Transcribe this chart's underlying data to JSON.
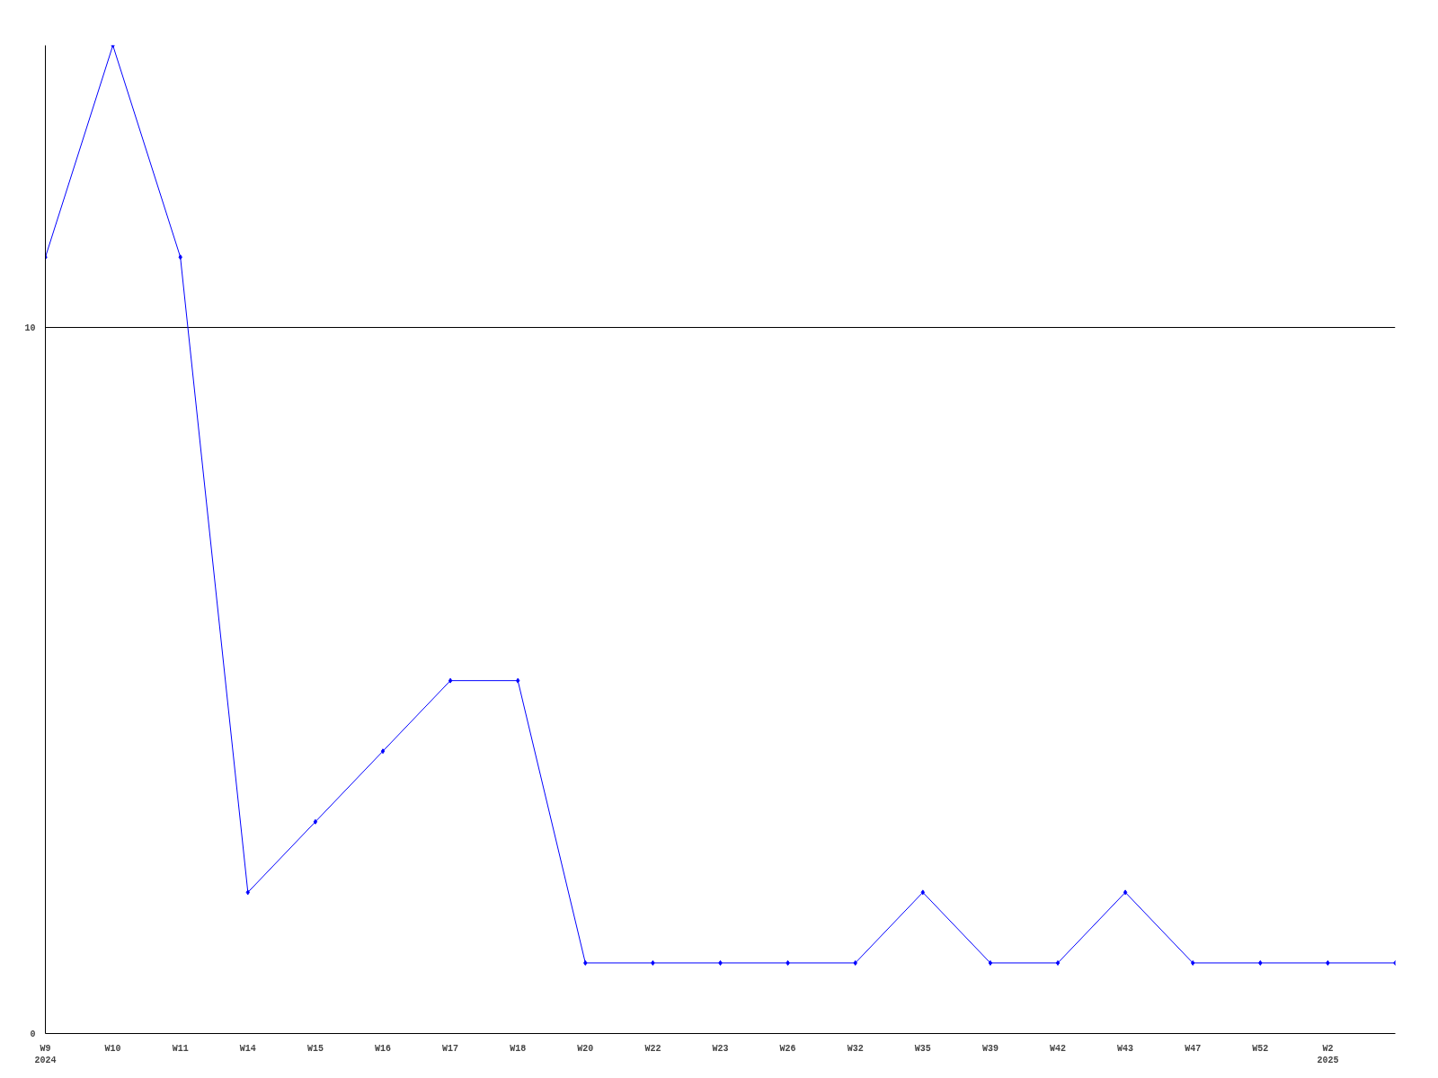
{
  "chart_data": {
    "type": "line",
    "categories": [
      "W9\n2024",
      "W10",
      "W11",
      "W14",
      "W15",
      "W16",
      "W17",
      "W18",
      "W20",
      "W22",
      "W23",
      "W26",
      "W32",
      "W35",
      "W39",
      "W42",
      "W43",
      "W47",
      "W52",
      "W2\n2025",
      null
    ],
    "series": [
      {
        "color": "#0000ff",
        "values": [
          11,
          14,
          11,
          2,
          3,
          4,
          5,
          5,
          1,
          1,
          1,
          1,
          1,
          2,
          1,
          1,
          2,
          1,
          1,
          1,
          1
        ]
      }
    ],
    "ylim": [
      0,
      14
    ],
    "yticks": [
      0,
      10
    ],
    "grid": "y",
    "marker": "diamond",
    "line_style": "solid"
  }
}
